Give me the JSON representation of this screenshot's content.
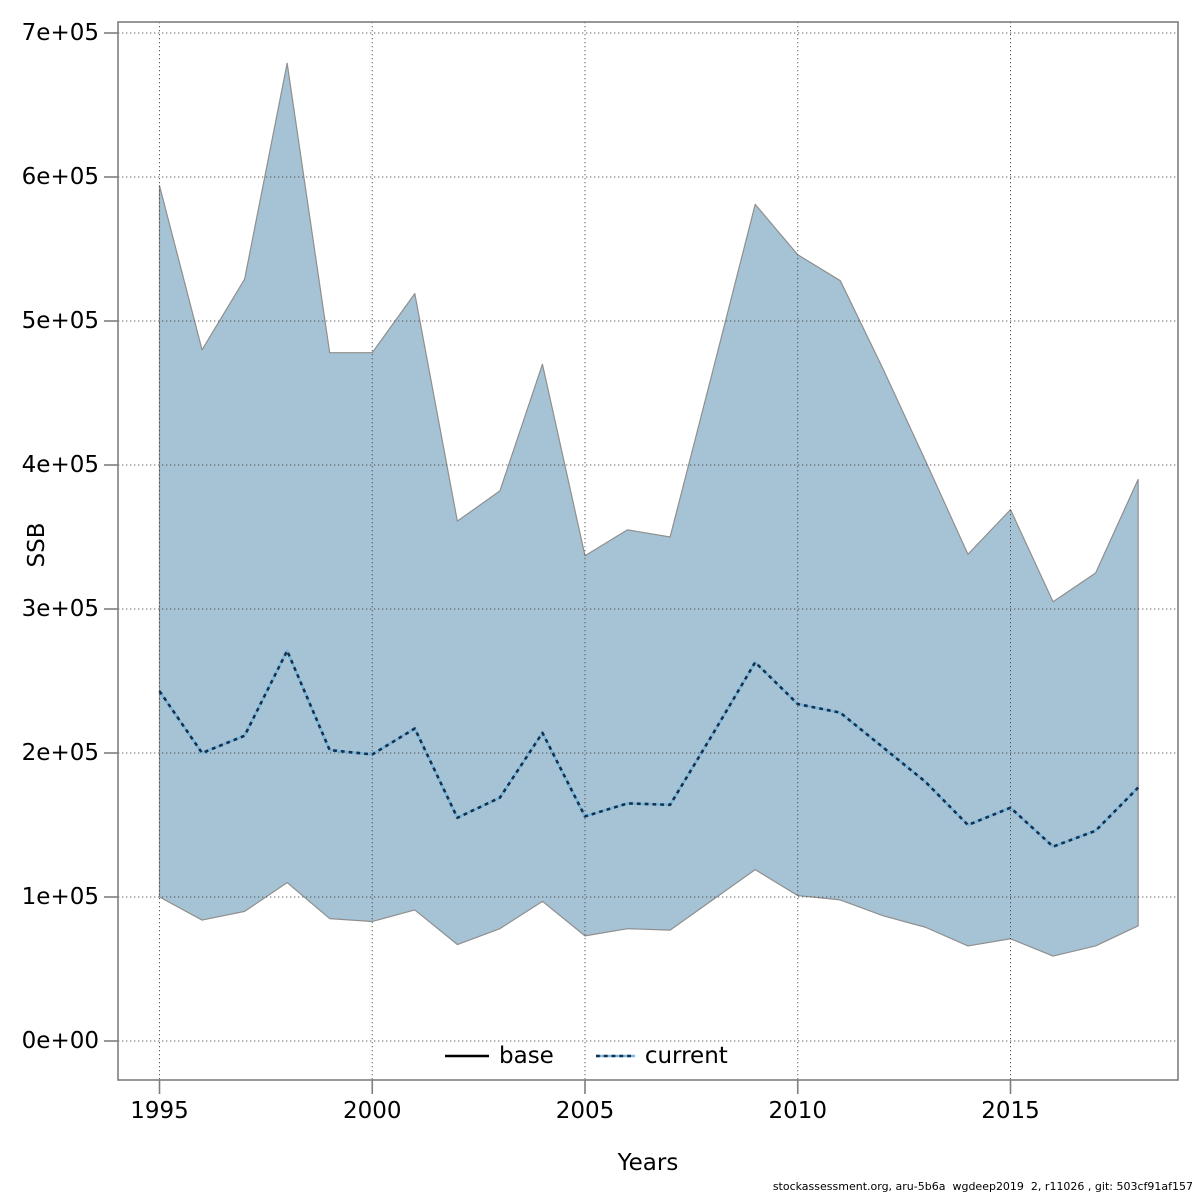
{
  "chart_data": {
    "type": "area",
    "title": "",
    "xlabel": "Years",
    "ylabel": "SSB",
    "grid": true,
    "legend_position": "bottom-center-inside",
    "x": [
      1995,
      1996,
      1997,
      1998,
      1999,
      2000,
      2001,
      2002,
      2003,
      2004,
      2005,
      2006,
      2007,
      2008,
      2009,
      2010,
      2011,
      2012,
      2013,
      2014,
      2015,
      2016,
      2017,
      2018
    ],
    "series": [
      {
        "name": "upper",
        "role": "confidence-band-upper",
        "values": [
          594000,
          480000,
          529000,
          679000,
          478000,
          478000,
          519000,
          361000,
          382000,
          470000,
          337000,
          355000,
          350000,
          465000,
          581000,
          546000,
          528000,
          467000,
          403000,
          338000,
          369000,
          305000,
          325000,
          390000
        ]
      },
      {
        "name": "current",
        "role": "median-line",
        "values": [
          243000,
          200000,
          212000,
          271000,
          202000,
          199000,
          217000,
          155000,
          169000,
          214000,
          156000,
          165000,
          164000,
          213000,
          263000,
          234000,
          228000,
          204000,
          180000,
          150000,
          162000,
          135000,
          146000,
          176000
        ]
      },
      {
        "name": "lower",
        "role": "confidence-band-lower",
        "values": [
          100000,
          84000,
          90000,
          110000,
          85000,
          83000,
          91000,
          67000,
          78000,
          97000,
          73000,
          78000,
          77000,
          98000,
          119000,
          101000,
          98000,
          87000,
          79000,
          66000,
          71000,
          59000,
          66000,
          80000
        ]
      }
    ],
    "xlim": [
      1994.05,
      2018.95
    ],
    "ylim": [
      0,
      700000
    ],
    "xticks": [
      1995,
      2000,
      2005,
      2010,
      2015
    ],
    "xtick_labels": [
      "1995",
      "2000",
      "2005",
      "2010",
      "2015"
    ],
    "yticks": [
      0,
      100000,
      200000,
      300000,
      400000,
      500000,
      600000,
      700000
    ],
    "ytick_labels": [
      "0e+00",
      "1e+05",
      "2e+05",
      "3e+05",
      "4e+05",
      "5e+05",
      "6e+05",
      "7e+05"
    ],
    "legend": [
      {
        "label": "base",
        "line_style": "solid",
        "line_color": "#000000"
      },
      {
        "label": "current",
        "line_style": "dotted",
        "line_color": "#16314f"
      }
    ]
  },
  "footer": "stockassessment.org, aru-5b6a  wgdeep2019  2, r11026 , git: 503cf91af157",
  "colors": {
    "band": "#a5c3d4",
    "band_edge": "#8f8f8f",
    "current_base": "#7cb8dc",
    "current_dash": "#16314f",
    "base_line": "#000000",
    "frame": "#7f7f7f",
    "grid": "#404040",
    "text": "#000000",
    "background": "#ffffff"
  }
}
